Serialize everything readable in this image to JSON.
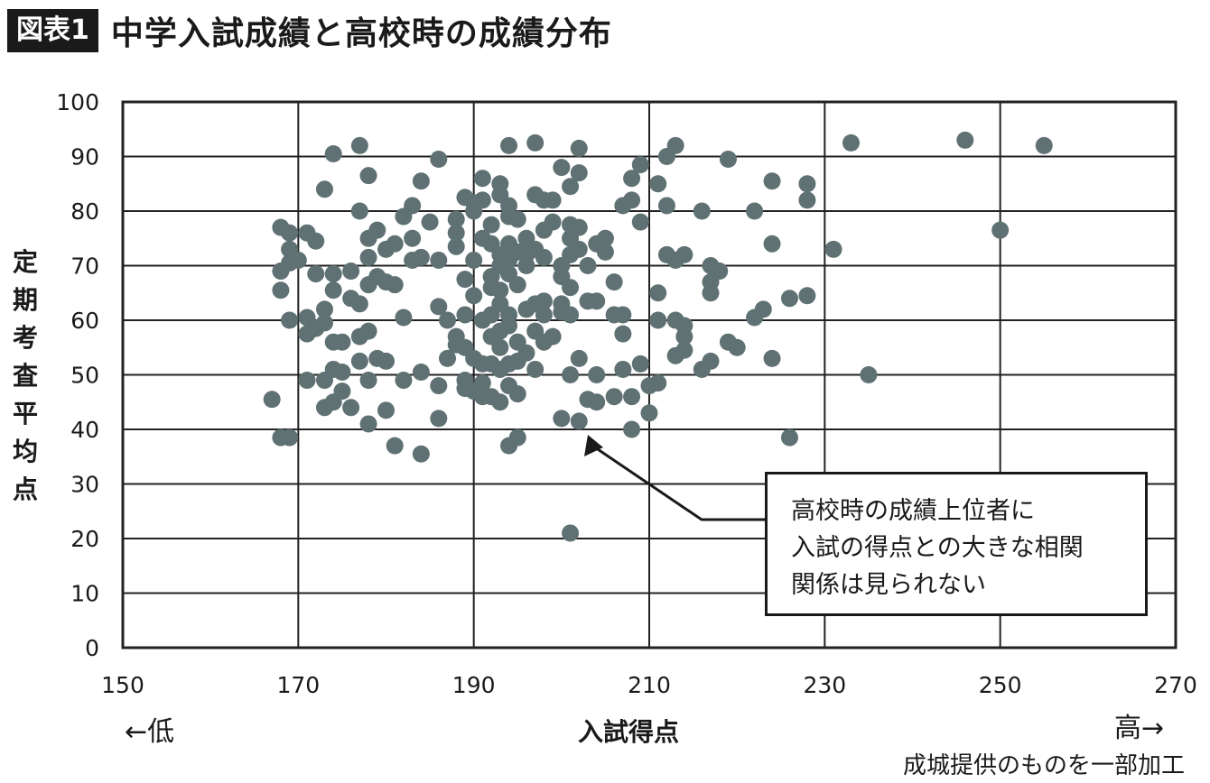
{
  "header": {
    "badge": "図表1",
    "title": "中学入試成績と高校時の成績分布"
  },
  "chart_data": {
    "type": "scatter",
    "title": "中学入試成績と高校時の成績分布",
    "xlabel": "入試得点",
    "ylabel": "定期考査平均点",
    "xlim": [
      150,
      270
    ],
    "ylim": [
      0,
      100
    ],
    "xticks": [
      150,
      170,
      190,
      210,
      230,
      250,
      270
    ],
    "yticks": [
      0,
      10,
      20,
      30,
      40,
      50,
      60,
      70,
      80,
      90,
      100
    ],
    "grid": true,
    "point_color": "#5f7173",
    "x_low_label": "←低",
    "x_high_label": "高→",
    "annotation": {
      "lines": [
        "高校時の成績上位者に",
        "入試の得点との大きな相関",
        "関係は見られない"
      ],
      "arrow_target": [
        203,
        39
      ]
    },
    "source": "成城提供のものを一部加工",
    "points": [
      [
        167,
        45.5
      ],
      [
        168,
        38.5
      ],
      [
        168,
        69
      ],
      [
        168,
        65.5
      ],
      [
        168,
        77
      ],
      [
        169,
        38.5
      ],
      [
        169,
        60
      ],
      [
        169,
        70.5
      ],
      [
        169,
        73
      ],
      [
        169,
        76
      ],
      [
        170,
        71
      ],
      [
        171,
        57.5
      ],
      [
        171,
        60.5
      ],
      [
        171,
        49
      ],
      [
        171,
        76
      ],
      [
        172,
        58.5
      ],
      [
        172,
        68.5
      ],
      [
        172,
        74.5
      ],
      [
        173,
        84
      ],
      [
        173,
        62
      ],
      [
        173,
        59.5
      ],
      [
        173,
        49
      ],
      [
        173,
        44
      ],
      [
        174,
        90.5
      ],
      [
        174,
        65.5
      ],
      [
        174,
        68.5
      ],
      [
        174,
        56
      ],
      [
        174,
        51
      ],
      [
        174,
        45
      ],
      [
        175,
        50.5
      ],
      [
        175,
        47
      ],
      [
        175,
        56
      ],
      [
        176,
        69
      ],
      [
        176,
        64
      ],
      [
        176,
        44
      ],
      [
        177,
        92
      ],
      [
        177,
        80
      ],
      [
        177,
        63
      ],
      [
        177,
        57
      ],
      [
        177,
        52.5
      ],
      [
        178,
        86.5
      ],
      [
        178,
        75
      ],
      [
        178,
        71.5
      ],
      [
        178,
        66.5
      ],
      [
        178,
        58
      ],
      [
        178,
        49
      ],
      [
        178,
        41
      ],
      [
        179,
        76.5
      ],
      [
        179,
        68
      ],
      [
        179,
        53
      ],
      [
        180,
        73
      ],
      [
        180,
        67
      ],
      [
        180,
        52.5
      ],
      [
        180,
        43.5
      ],
      [
        181,
        74
      ],
      [
        181,
        66.5
      ],
      [
        181,
        37
      ],
      [
        182,
        79
      ],
      [
        182,
        60.5
      ],
      [
        182,
        49
      ],
      [
        183,
        81
      ],
      [
        183,
        75
      ],
      [
        183,
        71
      ],
      [
        184,
        85.5
      ],
      [
        184,
        71.5
      ],
      [
        184,
        50.5
      ],
      [
        184,
        35.5
      ],
      [
        185,
        78
      ],
      [
        186,
        89.5
      ],
      [
        186,
        71
      ],
      [
        186,
        62.5
      ],
      [
        186,
        48
      ],
      [
        186,
        42
      ],
      [
        187,
        60
      ],
      [
        187,
        53
      ],
      [
        188,
        78.5
      ],
      [
        188,
        76
      ],
      [
        188,
        73.5
      ],
      [
        188,
        57
      ],
      [
        188,
        55.5
      ],
      [
        189,
        82.5
      ],
      [
        189,
        67.5
      ],
      [
        189,
        61
      ],
      [
        189,
        55
      ],
      [
        189,
        49
      ],
      [
        189,
        47.5
      ],
      [
        190,
        81.5
      ],
      [
        190,
        80
      ],
      [
        190,
        71
      ],
      [
        190,
        64.5
      ],
      [
        190,
        53
      ],
      [
        190,
        47
      ],
      [
        191,
        86
      ],
      [
        191,
        82
      ],
      [
        191,
        75
      ],
      [
        191,
        60
      ],
      [
        191,
        52
      ],
      [
        191,
        48.5
      ],
      [
        191,
        46
      ],
      [
        192,
        77.5
      ],
      [
        192,
        74
      ],
      [
        192,
        68
      ],
      [
        192,
        66
      ],
      [
        192,
        61
      ],
      [
        192,
        57
      ],
      [
        192,
        52
      ],
      [
        192,
        46
      ],
      [
        193,
        85
      ],
      [
        193,
        83
      ],
      [
        193,
        72
      ],
      [
        193,
        70
      ],
      [
        193,
        65.5
      ],
      [
        193,
        63
      ],
      [
        193,
        58
      ],
      [
        193,
        55
      ],
      [
        193,
        51
      ],
      [
        193,
        45
      ],
      [
        194,
        92
      ],
      [
        194,
        81
      ],
      [
        194,
        79
      ],
      [
        194,
        74
      ],
      [
        194,
        71
      ],
      [
        194,
        68.5
      ],
      [
        194,
        61
      ],
      [
        194,
        59
      ],
      [
        194,
        52
      ],
      [
        194,
        48
      ],
      [
        194,
        37
      ],
      [
        195,
        78.5
      ],
      [
        195,
        72.5
      ],
      [
        195,
        66.5
      ],
      [
        195,
        56
      ],
      [
        195,
        52.5
      ],
      [
        195,
        46.5
      ],
      [
        195,
        38.5
      ],
      [
        196,
        75
      ],
      [
        196,
        72
      ],
      [
        196,
        70
      ],
      [
        196,
        62
      ],
      [
        196,
        54
      ],
      [
        197,
        92.5
      ],
      [
        197,
        83
      ],
      [
        197,
        73
      ],
      [
        197,
        63
      ],
      [
        197,
        58
      ],
      [
        197,
        51
      ],
      [
        198,
        82
      ],
      [
        198,
        76.5
      ],
      [
        198,
        71.5
      ],
      [
        198,
        63.5
      ],
      [
        198,
        61
      ],
      [
        198,
        56
      ],
      [
        199,
        82
      ],
      [
        199,
        78
      ],
      [
        199,
        57
      ],
      [
        200,
        88
      ],
      [
        200,
        70
      ],
      [
        200,
        68
      ],
      [
        200,
        63
      ],
      [
        200,
        61.5
      ],
      [
        200,
        42
      ],
      [
        201,
        84.5
      ],
      [
        201,
        77.5
      ],
      [
        201,
        75
      ],
      [
        201,
        72
      ],
      [
        201,
        66
      ],
      [
        201,
        61
      ],
      [
        201,
        50
      ],
      [
        201,
        21
      ],
      [
        202,
        91.5
      ],
      [
        202,
        87
      ],
      [
        202,
        77
      ],
      [
        202,
        73
      ],
      [
        202,
        53
      ],
      [
        202,
        41.5
      ],
      [
        203,
        70
      ],
      [
        203,
        63.5
      ],
      [
        203,
        45.5
      ],
      [
        204,
        74
      ],
      [
        204,
        63.5
      ],
      [
        204,
        50
      ],
      [
        204,
        45
      ],
      [
        205,
        75
      ],
      [
        205,
        72.5
      ],
      [
        206,
        67
      ],
      [
        206,
        61
      ],
      [
        206,
        46
      ],
      [
        207,
        81
      ],
      [
        207,
        61
      ],
      [
        207,
        57.5
      ],
      [
        207,
        51
      ],
      [
        208,
        86
      ],
      [
        208,
        82
      ],
      [
        208,
        46
      ],
      [
        208,
        40
      ],
      [
        209,
        88.5
      ],
      [
        209,
        78
      ],
      [
        209,
        52
      ],
      [
        210,
        48
      ],
      [
        210,
        43
      ],
      [
        211,
        85
      ],
      [
        211,
        65
      ],
      [
        211,
        60
      ],
      [
        211,
        48.5
      ],
      [
        212,
        90
      ],
      [
        212,
        81
      ],
      [
        212,
        72
      ],
      [
        213,
        92
      ],
      [
        213,
        71
      ],
      [
        213,
        60
      ],
      [
        213,
        53.5
      ],
      [
        214,
        72
      ],
      [
        214,
        59
      ],
      [
        214,
        57
      ],
      [
        214,
        54.5
      ],
      [
        216,
        80
      ],
      [
        216,
        51
      ],
      [
        217,
        70
      ],
      [
        217,
        67
      ],
      [
        217,
        65
      ],
      [
        217,
        52.5
      ],
      [
        218,
        69
      ],
      [
        219,
        89.5
      ],
      [
        219,
        56
      ],
      [
        220,
        55
      ],
      [
        222,
        80
      ],
      [
        222,
        60.5
      ],
      [
        223,
        62
      ],
      [
        224,
        85.5
      ],
      [
        224,
        74
      ],
      [
        224,
        53
      ],
      [
        226,
        64
      ],
      [
        226,
        38.5
      ],
      [
        228,
        85
      ],
      [
        228,
        82
      ],
      [
        228,
        64.5
      ],
      [
        231,
        73
      ],
      [
        233,
        92.5
      ],
      [
        235,
        50
      ],
      [
        246,
        93
      ],
      [
        250,
        76.5
      ],
      [
        255,
        92
      ]
    ]
  }
}
